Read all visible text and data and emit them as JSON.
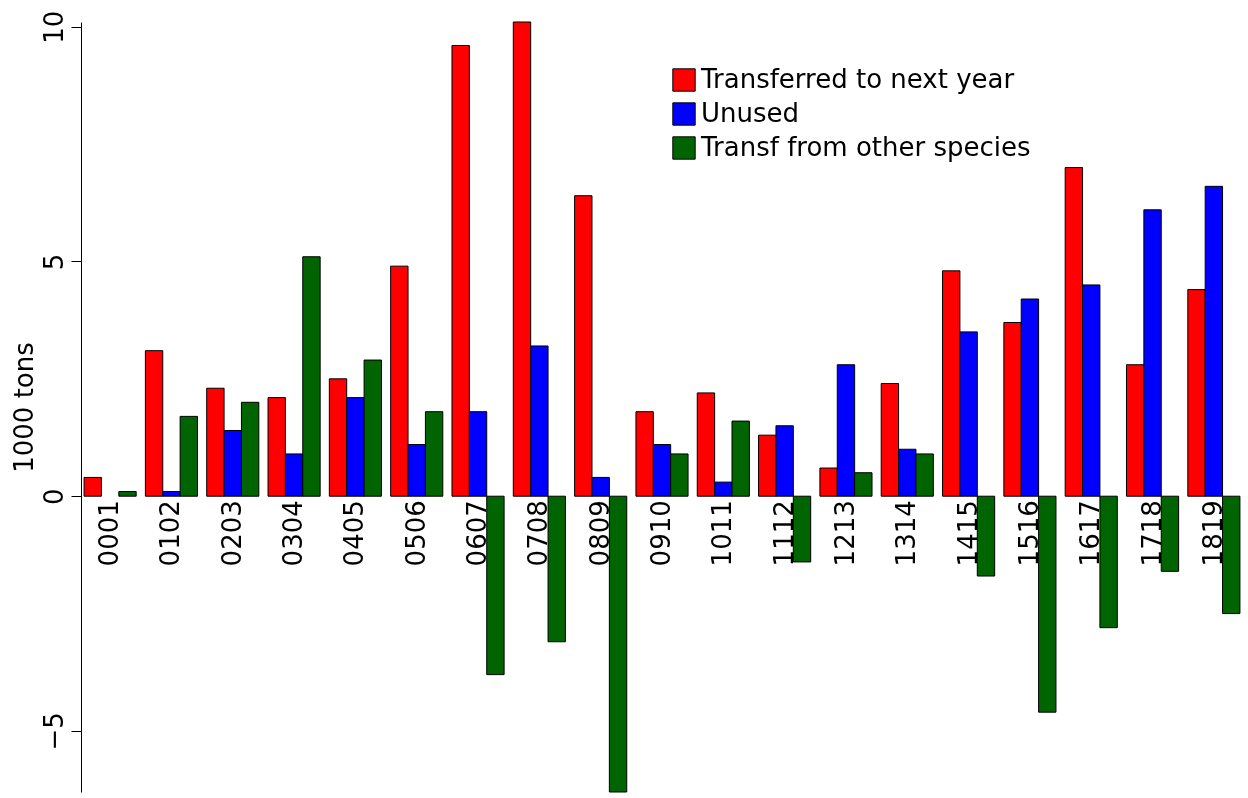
{
  "chart_data": {
    "type": "bar",
    "ylabel": "1000 tons",
    "categories": [
      "0001",
      "0102",
      "0203",
      "0304",
      "0405",
      "0506",
      "0607",
      "0708",
      "0809",
      "0910",
      "1011",
      "1112",
      "1213",
      "1314",
      "1415",
      "1516",
      "1617",
      "1718",
      "1819"
    ],
    "series": [
      {
        "name": "Transferred to next year",
        "color": "#ff0000",
        "values": [
          0.4,
          3.1,
          2.3,
          2.1,
          2.5,
          4.9,
          9.6,
          10.1,
          6.4,
          1.8,
          2.2,
          1.3,
          0.6,
          2.4,
          4.8,
          3.7,
          7.0,
          2.8,
          4.4
        ]
      },
      {
        "name": "Unused",
        "color": "#0000ff",
        "values": [
          0,
          0.1,
          1.4,
          0.9,
          2.1,
          1.1,
          1.8,
          3.2,
          0.4,
          1.1,
          0.3,
          1.5,
          2.8,
          1.0,
          3.5,
          4.2,
          4.5,
          6.1,
          6.6
        ]
      },
      {
        "name": "Transf from other species",
        "color": "#006400",
        "values": [
          0.1,
          1.7,
          2.0,
          5.1,
          2.9,
          1.8,
          -3.8,
          -3.1,
          -6.3,
          0.9,
          1.6,
          -1.4,
          0.5,
          0.9,
          -1.7,
          -4.6,
          -2.8,
          -1.6,
          -2.5
        ]
      }
    ],
    "ylim": [
      -6.3,
      10.1
    ],
    "yticks": [
      -5,
      0,
      5,
      10
    ],
    "grid": false,
    "legend": "top right",
    "tick_labels": "y"
  }
}
